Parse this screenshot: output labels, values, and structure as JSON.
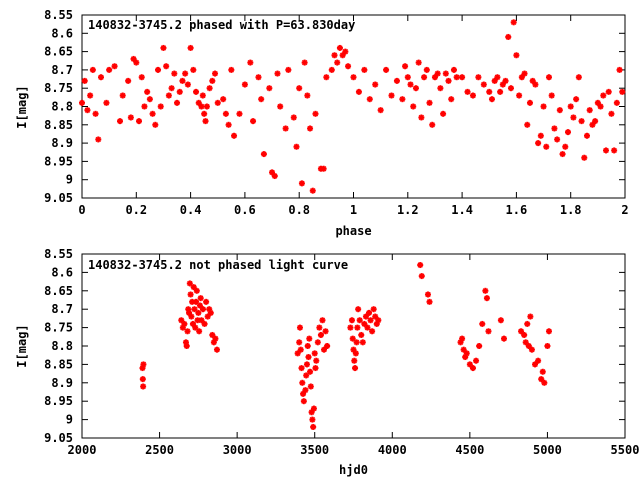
{
  "chart_data": [
    {
      "type": "scatter",
      "title": "140832-3745.2 phased with P=63.830day",
      "xlabel": "phase",
      "ylabel": "I[mag]",
      "xlim": [
        0,
        2
      ],
      "ylim": [
        8.55,
        9.05
      ],
      "y_inverted": true,
      "grid": false,
      "legend": "none",
      "marker_color": "#ff0000",
      "xticks": [
        "0",
        "0.2",
        "0.4",
        "0.6",
        "0.8",
        "1",
        "1.2",
        "1.4",
        "1.6",
        "1.8",
        "2"
      ],
      "yticks": [
        "8.55",
        "8.6",
        "8.65",
        "8.7",
        "8.75",
        "8.8",
        "8.85",
        "8.9",
        "8.95",
        "9",
        "9.05"
      ],
      "points": [
        [
          0.0,
          8.79
        ],
        [
          0.01,
          8.73
        ],
        [
          0.02,
          8.81
        ],
        [
          0.03,
          8.77
        ],
        [
          0.04,
          8.7
        ],
        [
          0.05,
          8.82
        ],
        [
          0.06,
          8.89
        ],
        [
          0.07,
          8.72
        ],
        [
          0.09,
          8.79
        ],
        [
          0.1,
          8.7
        ],
        [
          0.12,
          8.69
        ],
        [
          0.14,
          8.84
        ],
        [
          0.15,
          8.77
        ],
        [
          0.17,
          8.73
        ],
        [
          0.18,
          8.83
        ],
        [
          0.19,
          8.67
        ],
        [
          0.2,
          8.68
        ],
        [
          0.21,
          8.84
        ],
        [
          0.22,
          8.72
        ],
        [
          0.23,
          8.8
        ],
        [
          0.24,
          8.76
        ],
        [
          0.25,
          8.78
        ],
        [
          0.26,
          8.82
        ],
        [
          0.27,
          8.85
        ],
        [
          0.28,
          8.7
        ],
        [
          0.29,
          8.8
        ],
        [
          0.3,
          8.64
        ],
        [
          0.31,
          8.69
        ],
        [
          0.32,
          8.77
        ],
        [
          0.33,
          8.75
        ],
        [
          0.34,
          8.71
        ],
        [
          0.35,
          8.79
        ],
        [
          0.36,
          8.76
        ],
        [
          0.37,
          8.73
        ],
        [
          0.38,
          8.71
        ],
        [
          0.39,
          8.74
        ],
        [
          0.4,
          8.64
        ],
        [
          0.41,
          8.7
        ],
        [
          0.42,
          8.76
        ],
        [
          0.43,
          8.79
        ],
        [
          0.44,
          8.8
        ],
        [
          0.445,
          8.77
        ],
        [
          0.45,
          8.82
        ],
        [
          0.455,
          8.84
        ],
        [
          0.46,
          8.8
        ],
        [
          0.47,
          8.75
        ],
        [
          0.48,
          8.73
        ],
        [
          0.49,
          8.71
        ],
        [
          0.5,
          8.79
        ],
        [
          0.52,
          8.78
        ],
        [
          0.53,
          8.82
        ],
        [
          0.54,
          8.85
        ],
        [
          0.55,
          8.7
        ],
        [
          0.56,
          8.88
        ],
        [
          0.58,
          8.82
        ],
        [
          0.6,
          8.74
        ],
        [
          0.62,
          8.68
        ],
        [
          0.63,
          8.84
        ],
        [
          0.65,
          8.72
        ],
        [
          0.66,
          8.78
        ],
        [
          0.67,
          8.93
        ],
        [
          0.69,
          8.75
        ],
        [
          0.7,
          8.98
        ],
        [
          0.71,
          8.99
        ],
        [
          0.72,
          8.71
        ],
        [
          0.73,
          8.8
        ],
        [
          0.75,
          8.86
        ],
        [
          0.76,
          8.7
        ],
        [
          0.78,
          8.83
        ],
        [
          0.79,
          8.91
        ],
        [
          0.8,
          8.75
        ],
        [
          0.81,
          9.01
        ],
        [
          0.82,
          8.68
        ],
        [
          0.83,
          8.77
        ],
        [
          0.84,
          8.86
        ],
        [
          0.85,
          9.03
        ],
        [
          0.86,
          8.82
        ],
        [
          0.88,
          8.97
        ],
        [
          0.89,
          8.97
        ],
        [
          0.9,
          8.72
        ],
        [
          0.92,
          8.7
        ],
        [
          0.93,
          8.66
        ],
        [
          0.94,
          8.68
        ],
        [
          0.95,
          8.64
        ],
        [
          0.96,
          8.66
        ],
        [
          0.97,
          8.65
        ],
        [
          0.98,
          8.69
        ],
        [
          1.0,
          8.72
        ],
        [
          1.02,
          8.76
        ],
        [
          1.04,
          8.7
        ],
        [
          1.06,
          8.78
        ],
        [
          1.08,
          8.74
        ],
        [
          1.1,
          8.81
        ],
        [
          1.12,
          8.7
        ],
        [
          1.14,
          8.77
        ],
        [
          1.16,
          8.73
        ],
        [
          1.18,
          8.78
        ],
        [
          1.19,
          8.69
        ],
        [
          1.2,
          8.72
        ],
        [
          1.21,
          8.74
        ],
        [
          1.22,
          8.8
        ],
        [
          1.23,
          8.75
        ],
        [
          1.24,
          8.68
        ],
        [
          1.25,
          8.83
        ],
        [
          1.26,
          8.72
        ],
        [
          1.27,
          8.7
        ],
        [
          1.28,
          8.79
        ],
        [
          1.29,
          8.85
        ],
        [
          1.3,
          8.72
        ],
        [
          1.31,
          8.71
        ],
        [
          1.32,
          8.75
        ],
        [
          1.33,
          8.82
        ],
        [
          1.34,
          8.71
        ],
        [
          1.35,
          8.73
        ],
        [
          1.36,
          8.78
        ],
        [
          1.37,
          8.7
        ],
        [
          1.38,
          8.72
        ],
        [
          1.4,
          8.72
        ],
        [
          1.42,
          8.76
        ],
        [
          1.44,
          8.77
        ],
        [
          1.46,
          8.72
        ],
        [
          1.48,
          8.74
        ],
        [
          1.5,
          8.76
        ],
        [
          1.51,
          8.78
        ],
        [
          1.52,
          8.73
        ],
        [
          1.53,
          8.72
        ],
        [
          1.54,
          8.76
        ],
        [
          1.55,
          8.74
        ],
        [
          1.56,
          8.73
        ],
        [
          1.57,
          8.61
        ],
        [
          1.58,
          8.75
        ],
        [
          1.59,
          8.57
        ],
        [
          1.6,
          8.66
        ],
        [
          1.61,
          8.77
        ],
        [
          1.62,
          8.72
        ],
        [
          1.63,
          8.71
        ],
        [
          1.64,
          8.85
        ],
        [
          1.65,
          8.79
        ],
        [
          1.66,
          8.73
        ],
        [
          1.67,
          8.74
        ],
        [
          1.68,
          8.9
        ],
        [
          1.69,
          8.88
        ],
        [
          1.7,
          8.8
        ],
        [
          1.71,
          8.91
        ],
        [
          1.72,
          8.72
        ],
        [
          1.73,
          8.77
        ],
        [
          1.74,
          8.86
        ],
        [
          1.75,
          8.89
        ],
        [
          1.76,
          8.81
        ],
        [
          1.77,
          8.93
        ],
        [
          1.78,
          8.91
        ],
        [
          1.79,
          8.87
        ],
        [
          1.8,
          8.8
        ],
        [
          1.81,
          8.83
        ],
        [
          1.82,
          8.78
        ],
        [
          1.83,
          8.72
        ],
        [
          1.84,
          8.84
        ],
        [
          1.85,
          8.94
        ],
        [
          1.86,
          8.88
        ],
        [
          1.87,
          8.81
        ],
        [
          1.88,
          8.85
        ],
        [
          1.89,
          8.84
        ],
        [
          1.9,
          8.79
        ],
        [
          1.91,
          8.8
        ],
        [
          1.92,
          8.77
        ],
        [
          1.93,
          8.92
        ],
        [
          1.94,
          8.76
        ],
        [
          1.95,
          8.82
        ],
        [
          1.96,
          8.92
        ],
        [
          1.97,
          8.79
        ],
        [
          1.98,
          8.7
        ],
        [
          1.99,
          8.76
        ]
      ]
    },
    {
      "type": "scatter",
      "title": "140832-3745.2 not phased light curve",
      "xlabel": "hjd0",
      "ylabel": "I[mag]",
      "xlim": [
        2000,
        5500
      ],
      "ylim": [
        8.55,
        9.05
      ],
      "y_inverted": true,
      "grid": false,
      "legend": "none",
      "marker_color": "#ff0000",
      "xticks": [
        "2000",
        "2500",
        "3000",
        "3500",
        "4000",
        "4500",
        "5000",
        "5500"
      ],
      "yticks": [
        "8.55",
        "8.6",
        "8.65",
        "8.7",
        "8.75",
        "8.8",
        "8.85",
        "8.9",
        "8.95",
        "9",
        "9.05"
      ],
      "points": [
        [
          2390,
          8.86
        ],
        [
          2392,
          8.89
        ],
        [
          2394,
          8.91
        ],
        [
          2396,
          8.85
        ],
        [
          2640,
          8.73
        ],
        [
          2650,
          8.75
        ],
        [
          2660,
          8.74
        ],
        [
          2670,
          8.79
        ],
        [
          2675,
          8.8
        ],
        [
          2680,
          8.76
        ],
        [
          2685,
          8.7
        ],
        [
          2690,
          8.71
        ],
        [
          2695,
          8.63
        ],
        [
          2700,
          8.66
        ],
        [
          2705,
          8.72
        ],
        [
          2710,
          8.68
        ],
        [
          2715,
          8.74
        ],
        [
          2720,
          8.64
        ],
        [
          2725,
          8.7
        ],
        [
          2730,
          8.75
        ],
        [
          2735,
          8.68
        ],
        [
          2740,
          8.65
        ],
        [
          2745,
          8.73
        ],
        [
          2750,
          8.71
        ],
        [
          2755,
          8.76
        ],
        [
          2760,
          8.69
        ],
        [
          2765,
          8.67
        ],
        [
          2770,
          8.73
        ],
        [
          2780,
          8.7
        ],
        [
          2790,
          8.74
        ],
        [
          2800,
          8.68
        ],
        [
          2810,
          8.72
        ],
        [
          2820,
          8.7
        ],
        [
          2830,
          8.71
        ],
        [
          2840,
          8.77
        ],
        [
          2850,
          8.79
        ],
        [
          2860,
          8.78
        ],
        [
          2870,
          8.81
        ],
        [
          3390,
          8.82
        ],
        [
          3400,
          8.79
        ],
        [
          3405,
          8.75
        ],
        [
          3410,
          8.81
        ],
        [
          3415,
          8.86
        ],
        [
          3420,
          8.9
        ],
        [
          3425,
          8.93
        ],
        [
          3430,
          8.95
        ],
        [
          3440,
          8.92
        ],
        [
          3445,
          8.88
        ],
        [
          3450,
          8.85
        ],
        [
          3455,
          8.8
        ],
        [
          3460,
          8.83
        ],
        [
          3465,
          8.78
        ],
        [
          3470,
          8.87
        ],
        [
          3475,
          8.91
        ],
        [
          3480,
          8.98
        ],
        [
          3485,
          9.0
        ],
        [
          3490,
          9.02
        ],
        [
          3495,
          8.97
        ],
        [
          3500,
          8.82
        ],
        [
          3505,
          8.86
        ],
        [
          3510,
          8.84
        ],
        [
          3520,
          8.79
        ],
        [
          3530,
          8.75
        ],
        [
          3540,
          8.77
        ],
        [
          3550,
          8.73
        ],
        [
          3560,
          8.81
        ],
        [
          3570,
          8.76
        ],
        [
          3580,
          8.8
        ],
        [
          3730,
          8.75
        ],
        [
          3740,
          8.73
        ],
        [
          3745,
          8.78
        ],
        [
          3750,
          8.81
        ],
        [
          3755,
          8.84
        ],
        [
          3760,
          8.86
        ],
        [
          3765,
          8.82
        ],
        [
          3770,
          8.79
        ],
        [
          3775,
          8.75
        ],
        [
          3780,
          8.7
        ],
        [
          3790,
          8.73
        ],
        [
          3800,
          8.77
        ],
        [
          3810,
          8.79
        ],
        [
          3820,
          8.74
        ],
        [
          3830,
          8.72
        ],
        [
          3840,
          8.75
        ],
        [
          3850,
          8.71
        ],
        [
          3860,
          8.73
        ],
        [
          3870,
          8.76
        ],
        [
          3880,
          8.7
        ],
        [
          3890,
          8.72
        ],
        [
          3900,
          8.74
        ],
        [
          3910,
          8.73
        ],
        [
          4180,
          8.58
        ],
        [
          4190,
          8.61
        ],
        [
          4230,
          8.66
        ],
        [
          4240,
          8.68
        ],
        [
          4440,
          8.79
        ],
        [
          4450,
          8.78
        ],
        [
          4460,
          8.81
        ],
        [
          4470,
          8.83
        ],
        [
          4480,
          8.82
        ],
        [
          4500,
          8.85
        ],
        [
          4520,
          8.86
        ],
        [
          4540,
          8.84
        ],
        [
          4560,
          8.8
        ],
        [
          4580,
          8.74
        ],
        [
          4600,
          8.65
        ],
        [
          4610,
          8.67
        ],
        [
          4620,
          8.76
        ],
        [
          4700,
          8.73
        ],
        [
          4720,
          8.78
        ],
        [
          4830,
          8.76
        ],
        [
          4850,
          8.77
        ],
        [
          4860,
          8.79
        ],
        [
          4870,
          8.74
        ],
        [
          4880,
          8.8
        ],
        [
          4890,
          8.72
        ],
        [
          4900,
          8.81
        ],
        [
          4920,
          8.85
        ],
        [
          4940,
          8.84
        ],
        [
          4960,
          8.89
        ],
        [
          4970,
          8.87
        ],
        [
          4980,
          8.9
        ],
        [
          5000,
          8.8
        ],
        [
          5010,
          8.76
        ]
      ]
    }
  ]
}
